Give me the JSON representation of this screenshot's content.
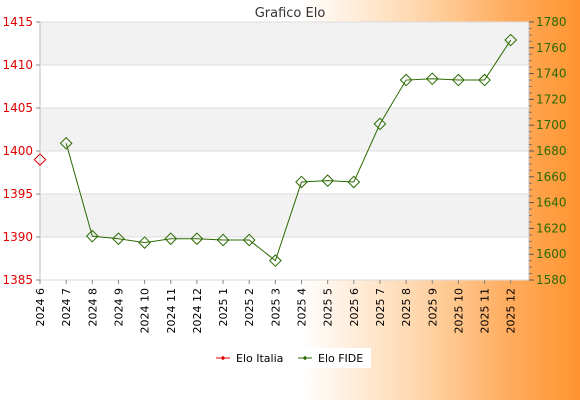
{
  "chart_data": {
    "type": "line",
    "title": "Grafico Elo",
    "categories": [
      "2024 6",
      "2024 7",
      "2024 8",
      "2024 9",
      "2024 10",
      "2024 11",
      "2024 12",
      "2025 1",
      "2025 2",
      "2025 3",
      "2025 4",
      "2025 5",
      "2025 6",
      "2025 7",
      "2025 8",
      "2025 9",
      "2025 10",
      "2025 11",
      "2025 12"
    ],
    "y_left": {
      "range": [
        1385,
        1415
      ],
      "ticks": [
        1385,
        1390,
        1395,
        1400,
        1405,
        1410,
        1415
      ],
      "color": "#e00000"
    },
    "y_right": {
      "range": [
        1580,
        1780
      ],
      "ticks": [
        1580,
        1600,
        1620,
        1640,
        1660,
        1680,
        1700,
        1720,
        1740,
        1760,
        1780
      ],
      "color": "#2b6a00"
    },
    "series": [
      {
        "name": "Elo Italia",
        "axis": "left",
        "color": "#e00000",
        "values": [
          1399,
          null,
          null,
          null,
          null,
          null,
          null,
          null,
          null,
          null,
          null,
          null,
          null,
          null,
          null,
          null,
          null,
          null,
          null
        ]
      },
      {
        "name": "Elo FIDE",
        "axis": "right",
        "color": "#2b6a00",
        "values": [
          null,
          1686,
          1614,
          1612,
          1609,
          1612,
          1612,
          1611,
          1611,
          1595,
          1656,
          1657,
          1656,
          1701,
          1735,
          1736,
          1735,
          1735,
          1766
        ]
      }
    ],
    "grid": true,
    "legend": "bottom-center",
    "band_colors": [
      "#f2f2f2",
      "#ffffff"
    ]
  }
}
